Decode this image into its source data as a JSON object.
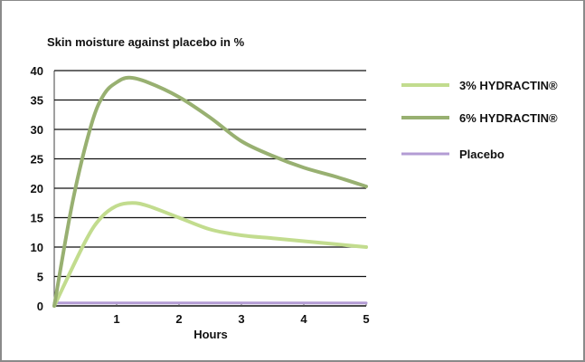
{
  "chart_data": {
    "type": "line",
    "title": "Skin moisture against placebo in %",
    "xlabel": "Hours",
    "ylabel": "",
    "xlim": [
      0,
      5
    ],
    "ylim": [
      0,
      40
    ],
    "xticks": [
      1,
      2,
      3,
      4,
      5
    ],
    "yticks": [
      0,
      5,
      10,
      15,
      20,
      25,
      30,
      35,
      40
    ],
    "grid": "horizontal",
    "legend_position": "right",
    "series": [
      {
        "name": "3% HYDRACTIN®",
        "color": "#c2dc8e",
        "x": [
          0,
          0.5,
          0.75,
          1,
          1.25,
          1.5,
          2,
          2.5,
          3,
          3.5,
          4,
          4.5,
          5
        ],
        "y": [
          0,
          11,
          15,
          17,
          17.5,
          17,
          15,
          13,
          12,
          11.5,
          11,
          10.5,
          10
        ]
      },
      {
        "name": "6% HYDRACTIN®",
        "color": "#98b071",
        "x": [
          0,
          0.3,
          0.6,
          0.8,
          1,
          1.2,
          1.5,
          2,
          2.5,
          3,
          3.5,
          4,
          4.5,
          5
        ],
        "y": [
          0,
          18,
          31,
          36,
          38,
          38.8,
          38,
          35.5,
          32,
          28,
          25.5,
          23.5,
          22,
          20.3
        ]
      },
      {
        "name": "Placebo",
        "color": "#b39cd4",
        "x": [
          0,
          1,
          2,
          3,
          4,
          5
        ],
        "y": [
          0.5,
          0.5,
          0.5,
          0.5,
          0.5,
          0.5
        ]
      }
    ]
  }
}
